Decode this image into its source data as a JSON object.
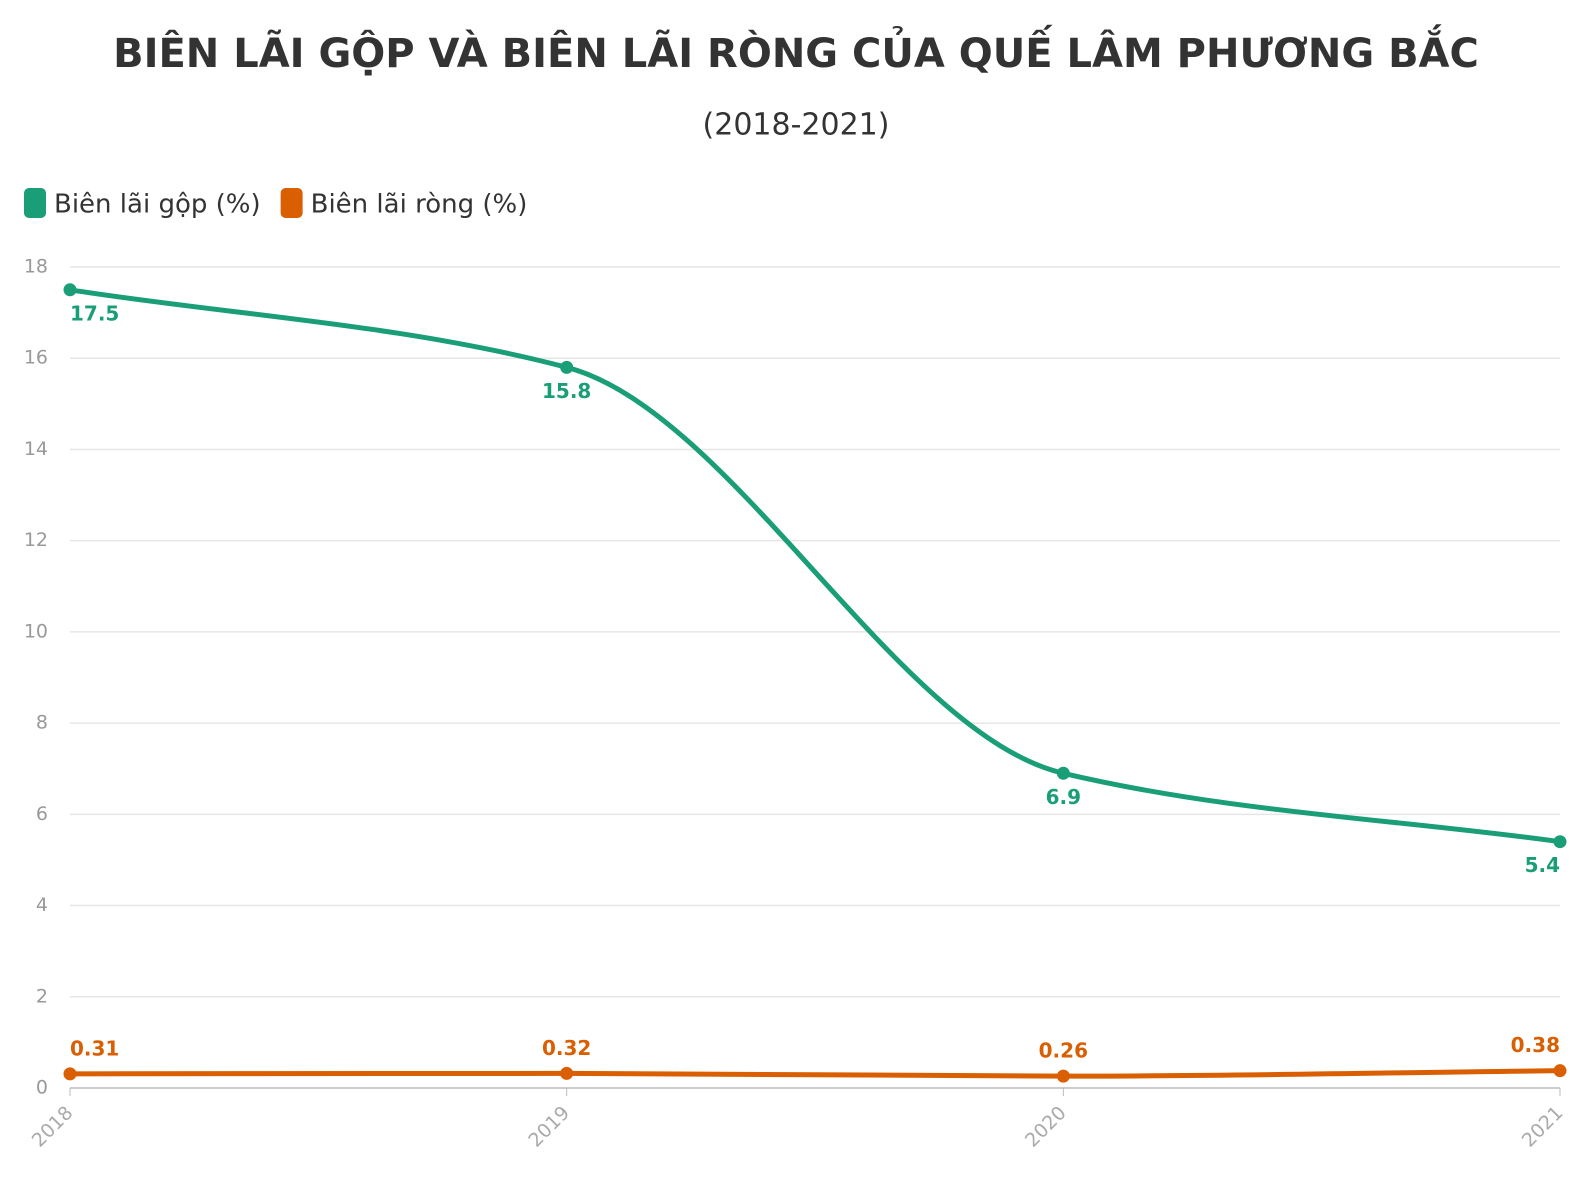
{
  "chart_data": {
    "type": "line",
    "title": "BIÊN LÃI GỘP VÀ BIÊN LÃI RÒNG CỦA QUẾ LÂM PHƯƠNG BẮC",
    "subtitle": "(2018-2021)",
    "categories": [
      "2018",
      "2019",
      "2020",
      "2021"
    ],
    "series": [
      {
        "name": "Biên lãi gộp (%)",
        "color": "#1a9e77",
        "values": [
          17.5,
          15.8,
          6.9,
          5.4
        ]
      },
      {
        "name": "Biên lãi ròng (%)",
        "color": "#d95f02",
        "values": [
          0.31,
          0.32,
          0.26,
          0.38
        ]
      }
    ],
    "ylim": [
      0,
      18
    ],
    "yticks": [
      0,
      2,
      4,
      6,
      8,
      10,
      12,
      14,
      16,
      18
    ],
    "grid": true,
    "legend": "top-left"
  }
}
